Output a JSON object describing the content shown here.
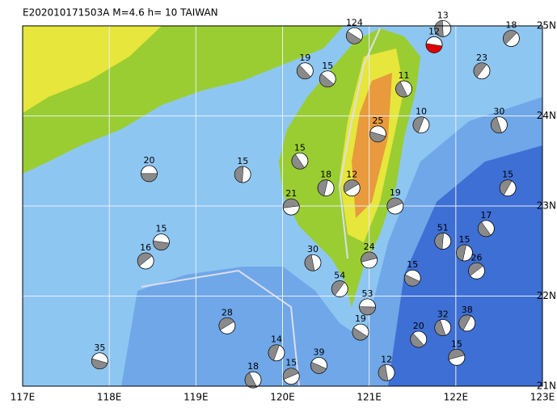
{
  "header": {
    "title": "E202010171503A  M=4.6  h= 10  TAIWAN"
  },
  "axes": {
    "x": [
      {
        "value": 117,
        "label": "117E"
      },
      {
        "value": 118,
        "label": "118E"
      },
      {
        "value": 119,
        "label": "119E"
      },
      {
        "value": 120,
        "label": "120E"
      },
      {
        "value": 121,
        "label": "121E"
      },
      {
        "value": 122,
        "label": "122E"
      },
      {
        "value": 123,
        "label": "123E"
      }
    ],
    "y": [
      {
        "value": 25,
        "label": "25N"
      },
      {
        "value": 24,
        "label": "24N"
      },
      {
        "value": 23,
        "label": "23N"
      },
      {
        "value": 22,
        "label": "22N"
      },
      {
        "value": 21,
        "label": "21N"
      }
    ]
  },
  "events": [
    {
      "lon": 118.46,
      "lat": 23.36,
      "depth": 20
    },
    {
      "lon": 120.26,
      "lat": 24.5,
      "depth": 19
    },
    {
      "lon": 119.54,
      "lat": 23.35,
      "depth": 15
    },
    {
      "lon": 118.42,
      "lat": 22.39,
      "depth": 16
    },
    {
      "lon": 118.6,
      "lat": 22.6,
      "depth": 15
    },
    {
      "lon": 122.35,
      "lat": 22.75,
      "depth": 17
    },
    {
      "lon": 122.1,
      "lat": 22.48,
      "depth": 15
    },
    {
      "lon": 119.36,
      "lat": 21.67,
      "depth": 28
    },
    {
      "lon": 117.89,
      "lat": 21.28,
      "depth": 35
    },
    {
      "lon": 119.66,
      "lat": 21.07,
      "depth": 18
    },
    {
      "lon": 119.93,
      "lat": 21.37,
      "depth": 14
    },
    {
      "lon": 120.1,
      "lat": 21.11,
      "depth": 15
    },
    {
      "lon": 120.42,
      "lat": 21.23,
      "depth": 39
    },
    {
      "lon": 121.85,
      "lat": 21.65,
      "depth": 32
    },
    {
      "lon": 122.13,
      "lat": 21.7,
      "depth": 38
    },
    {
      "lon": 122.01,
      "lat": 21.32,
      "depth": 15
    },
    {
      "lon": 120.83,
      "lat": 24.89,
      "depth": 124
    },
    {
      "lon": 120.35,
      "lat": 22.37,
      "depth": 30
    },
    {
      "lon": 120.66,
      "lat": 22.08,
      "depth": 54
    },
    {
      "lon": 120.1,
      "lat": 22.99,
      "depth": 21
    },
    {
      "lon": 120.52,
      "lat": 24.41,
      "depth": 15
    },
    {
      "lon": 121.85,
      "lat": 24.97,
      "depth": 13
    },
    {
      "lon": 122.64,
      "lat": 24.86,
      "depth": 18
    },
    {
      "lon": 120.98,
      "lat": 21.88,
      "depth": 53
    },
    {
      "lon": 121.57,
      "lat": 21.52,
      "depth": 20
    },
    {
      "lon": 121.85,
      "lat": 22.61,
      "depth": 51
    },
    {
      "lon": 122.24,
      "lat": 22.28,
      "depth": 26
    },
    {
      "lon": 121.75,
      "lat": 24.79,
      "depth": 12,
      "color": "#e00000"
    },
    {
      "lon": 120.2,
      "lat": 23.5,
      "depth": 15
    },
    {
      "lon": 120.5,
      "lat": 23.2,
      "depth": 18
    },
    {
      "lon": 120.8,
      "lat": 23.2,
      "depth": 12
    },
    {
      "lon": 121.1,
      "lat": 23.8,
      "depth": 25
    },
    {
      "lon": 121.4,
      "lat": 24.3,
      "depth": 11
    },
    {
      "lon": 121.6,
      "lat": 23.9,
      "depth": 10
    },
    {
      "lon": 121.3,
      "lat": 23.0,
      "depth": 19
    },
    {
      "lon": 121.5,
      "lat": 22.2,
      "depth": 15
    },
    {
      "lon": 122.5,
      "lat": 23.9,
      "depth": 30
    },
    {
      "lon": 122.6,
      "lat": 23.2,
      "depth": 15
    },
    {
      "lon": 121.0,
      "lat": 22.4,
      "depth": 24
    },
    {
      "lon": 120.9,
      "lat": 21.6,
      "depth": 19
    },
    {
      "lon": 121.2,
      "lat": 21.15,
      "depth": 12
    },
    {
      "lon": 122.3,
      "lat": 24.5,
      "depth": 23
    }
  ]
}
